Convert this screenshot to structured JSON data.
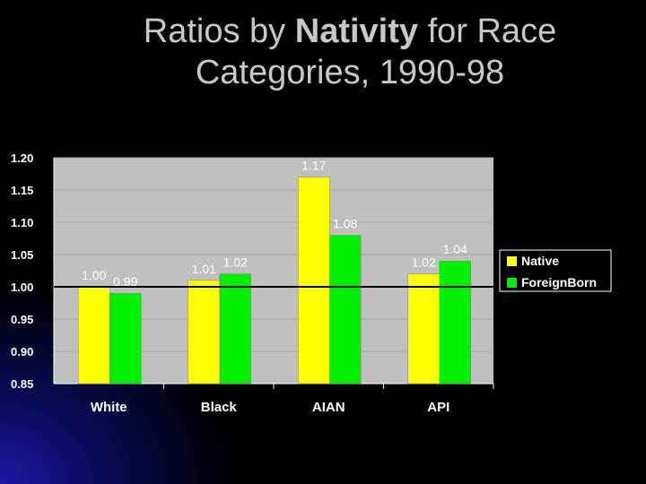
{
  "slide": {
    "title_pre": "Ratios by ",
    "title_bold": "Nativity",
    "title_post": " for Race",
    "title_line2": "Categories, 1990-98"
  },
  "colors": {
    "background": "#000000",
    "plot_area": "#bfbfbf",
    "native": "#ffff00",
    "foreign_born": "#00ee00",
    "text": "#ffffff",
    "title": "#c8c8c8"
  },
  "chart_data": {
    "type": "bar",
    "categories": [
      "White",
      "Black",
      "AIAN",
      "API"
    ],
    "series": [
      {
        "name": "Native",
        "values": [
          1.0,
          1.01,
          1.17,
          1.02
        ],
        "labels": [
          "1.00",
          "1.01",
          "1.17",
          "1.02"
        ]
      },
      {
        "name": "ForeignBorn",
        "values": [
          0.99,
          1.02,
          1.08,
          1.04
        ],
        "labels": [
          "0.99",
          "1.02",
          "1.08",
          "1.04"
        ]
      }
    ],
    "ylim": [
      0.85,
      1.2
    ],
    "yticks": [
      "1.20",
      "1.15",
      "1.10",
      "1.05",
      "1.00",
      "0.95",
      "0.90",
      "0.85"
    ],
    "ytick_values": [
      1.2,
      1.15,
      1.1,
      1.05,
      1.0,
      0.95,
      0.9,
      0.85
    ],
    "reference_line": 1.0,
    "grid": true,
    "legend_position": "right"
  }
}
